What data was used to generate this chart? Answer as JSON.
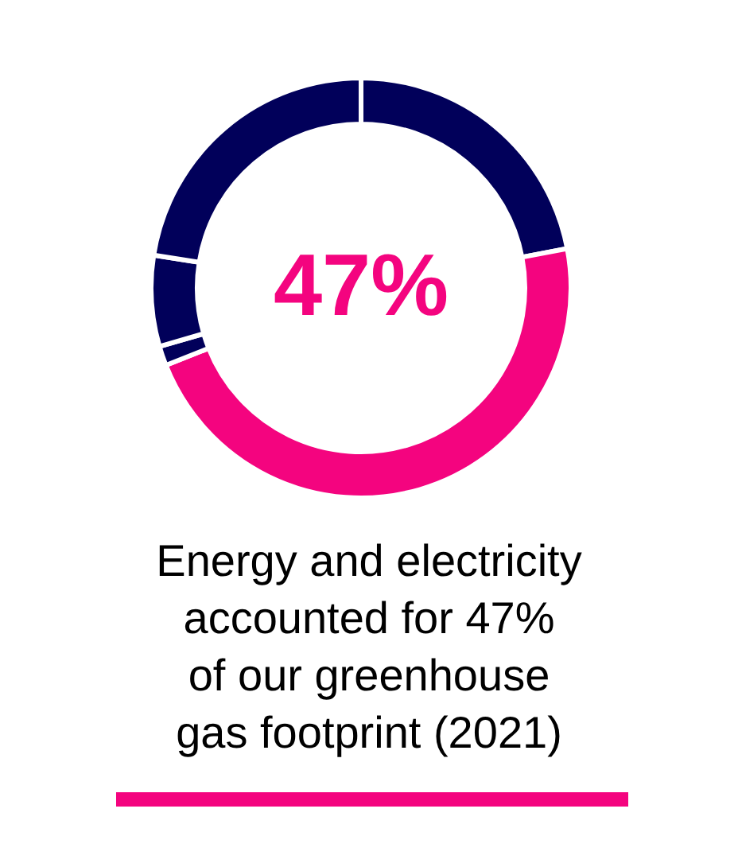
{
  "chart_data": {
    "type": "donut",
    "title": "Energy and electricity\naccounted for 47%\nof our greenhouse\ngas footprint (2021)",
    "categories": [
      null,
      null,
      null,
      null,
      null
    ],
    "values": [
      22,
      47,
      1.5,
      7,
      22.5
    ],
    "colors": [
      "#01005a",
      "#f4047f",
      "#01005a",
      "#01005a",
      "#01005a"
    ],
    "annotations": [
      "47%"
    ]
  }
}
